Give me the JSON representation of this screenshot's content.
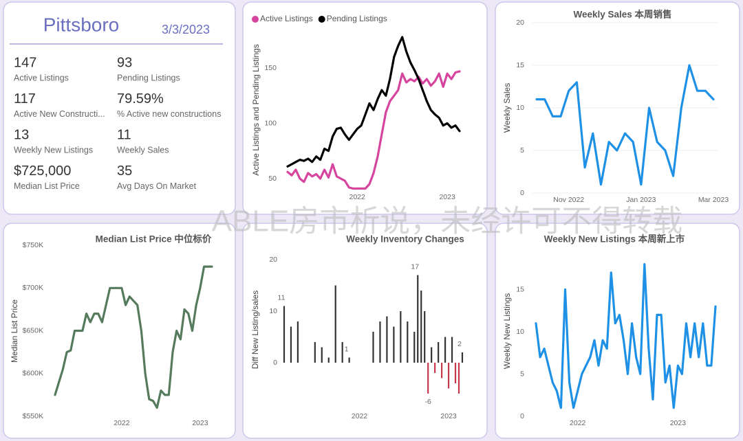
{
  "kpi": {
    "title": "Pittsboro",
    "date": "3/3/2023",
    "metrics": [
      {
        "value": "147",
        "label": "Active Listings"
      },
      {
        "value": "93",
        "label": "Pending Listings"
      },
      {
        "value": "117",
        "label": "Active New Constructi..."
      },
      {
        "value": "79.59%",
        "label": "% Active new constructions"
      },
      {
        "value": "13",
        "label": "Weekly New Listings"
      },
      {
        "value": "11",
        "label": "Weekly Sales"
      },
      {
        "value": "$725,000",
        "label": "Median List Price"
      },
      {
        "value": "35",
        "label": "Avg Days On Market"
      }
    ]
  },
  "watermark": "ABLE房市析说，未经许可不得转载",
  "chart_data": [
    {
      "type": "line",
      "y_label": "Active Listings and Pending Listings",
      "legend": "top-left",
      "grid": false,
      "categories": [
        null,
        null,
        null,
        null,
        null,
        null,
        null,
        null,
        null,
        null,
        null,
        null,
        null,
        null,
        null,
        null,
        null,
        "2022",
        null,
        null,
        null,
        null,
        null,
        null,
        null,
        null,
        null,
        null,
        null,
        null,
        null,
        null,
        null,
        null,
        null,
        null,
        null,
        null,
        null,
        "2023",
        null,
        null,
        null
      ],
      "series": [
        {
          "name": "Active Listings",
          "color": "#d6449e",
          "values": [
            56,
            53,
            58,
            50,
            47,
            55,
            52,
            54,
            50,
            58,
            51,
            63,
            52,
            50,
            48,
            42,
            41,
            41,
            41,
            41,
            45,
            55,
            70,
            90,
            110,
            120,
            125,
            130,
            145,
            137,
            140,
            138,
            142,
            136,
            140,
            134,
            138,
            145,
            133,
            145,
            140,
            146,
            147
          ]
        },
        {
          "name": "Pending Listings",
          "color": "#000000",
          "values": [
            61,
            63,
            65,
            67,
            66,
            68,
            65,
            70,
            67,
            77,
            75,
            88,
            95,
            96,
            90,
            85,
            90,
            95,
            98,
            108,
            118,
            112,
            122,
            130,
            125,
            140,
            160,
            170,
            178,
            165,
            155,
            148,
            140,
            130,
            120,
            112,
            108,
            105,
            98,
            100,
            96,
            98,
            93
          ]
        }
      ],
      "ylim": [
        38,
        184
      ],
      "yticks": [
        50,
        100,
        150
      ]
    },
    {
      "type": "line",
      "title": "Weekly Sales 本周销售",
      "y_label": "Weekly Sales",
      "grid": true,
      "color": "#1e90e6",
      "categories": [
        null,
        null,
        null,
        null,
        "Nov 2022",
        null,
        null,
        null,
        null,
        null,
        null,
        null,
        null,
        "Jan 2023",
        null,
        null,
        null,
        null,
        null,
        null,
        null,
        null,
        "Mar 2023"
      ],
      "values": [
        11,
        11,
        9,
        9,
        12,
        13,
        3,
        7,
        1,
        6,
        5,
        7,
        6,
        1,
        10,
        6,
        5,
        2,
        10,
        15,
        12,
        12,
        11
      ],
      "ylim": [
        0,
        20
      ],
      "yticks": [
        0,
        5,
        10,
        15,
        20
      ]
    },
    {
      "type": "line",
      "title": "Median List Price  中位标价",
      "y_label": "Median List Price",
      "grid": false,
      "color": "#557a5c",
      "categories": [
        null,
        null,
        null,
        null,
        null,
        null,
        null,
        null,
        null,
        null,
        null,
        null,
        null,
        null,
        null,
        null,
        null,
        "2022",
        null,
        null,
        null,
        null,
        null,
        null,
        null,
        null,
        null,
        null,
        null,
        null,
        null,
        null,
        null,
        null,
        null,
        null,
        null,
        "2023",
        null,
        null,
        null
      ],
      "values": [
        575000,
        590000,
        605000,
        625000,
        627000,
        650000,
        650000,
        650000,
        670000,
        660000,
        670000,
        670000,
        660000,
        680000,
        700000,
        700000,
        700000,
        700000,
        680000,
        690000,
        685000,
        680000,
        650000,
        600000,
        570000,
        568000,
        560000,
        580000,
        575000,
        575000,
        625000,
        650000,
        640000,
        675000,
        670000,
        650000,
        680000,
        700000,
        725000,
        725000,
        725000
      ],
      "ylim": [
        550000,
        750000
      ],
      "yticks": [
        {
          "value": 550000,
          "label": "$550K"
        },
        {
          "value": 600000,
          "label": "$600K"
        },
        {
          "value": 650000,
          "label": "$650K"
        },
        {
          "value": 700000,
          "label": "$700K"
        },
        {
          "value": 750000,
          "label": "$750K"
        }
      ]
    },
    {
      "type": "bar",
      "title": "Weekly Inventory Changes",
      "y_label": "Diff New Listing/sales",
      "grid": false,
      "color": "#333333",
      "negative_color": "#c8374c",
      "categories": [
        null,
        null,
        null,
        null,
        null,
        null,
        null,
        null,
        null,
        null,
        null,
        null,
        null,
        null,
        null,
        null,
        null,
        null,
        null,
        null,
        null,
        null,
        "2022",
        null,
        null,
        null,
        null,
        null,
        null,
        null,
        null,
        null,
        null,
        null,
        null,
        null,
        null,
        null,
        null,
        null,
        null,
        null,
        null,
        null,
        null,
        null,
        null,
        null,
        "2023",
        null,
        null,
        null,
        null
      ],
      "values": [
        11,
        0,
        7,
        0,
        8,
        0,
        0,
        0,
        0,
        4,
        0,
        3,
        0,
        1,
        0,
        15,
        0,
        4,
        0,
        1,
        0,
        0,
        0,
        0,
        0,
        0,
        6,
        0,
        8,
        0,
        9,
        0,
        7,
        0,
        10,
        0,
        8,
        0,
        6,
        17,
        14,
        10,
        -6,
        3,
        -2,
        4,
        -3,
        5,
        -5,
        5,
        -4,
        -6,
        2
      ],
      "value_labels": [
        "11",
        null,
        null,
        null,
        null,
        null,
        null,
        null,
        null,
        null,
        null,
        null,
        null,
        null,
        null,
        null,
        null,
        null,
        null,
        "1",
        null,
        null,
        null,
        null,
        null,
        null,
        null,
        null,
        null,
        null,
        null,
        null,
        null,
        null,
        null,
        null,
        null,
        null,
        null,
        "17",
        null,
        null,
        "-6",
        null,
        null,
        null,
        null,
        null,
        null,
        null,
        null,
        null,
        "2"
      ],
      "ylim": [
        -8,
        21
      ],
      "yticks": [
        0,
        10,
        20
      ]
    },
    {
      "type": "line",
      "title": "Weekly New Listings  本周新上市",
      "y_label": "Weekly New Listings",
      "grid": false,
      "color": "#1e90e6",
      "categories": [
        null,
        null,
        null,
        null,
        null,
        null,
        null,
        null,
        null,
        null,
        "2022",
        null,
        null,
        null,
        null,
        null,
        null,
        null,
        null,
        null,
        null,
        null,
        null,
        null,
        null,
        null,
        null,
        null,
        null,
        null,
        null,
        null,
        null,
        null,
        "2023",
        null,
        null,
        null,
        null,
        null,
        null,
        null,
        null,
        null
      ],
      "values": [
        11,
        7,
        8,
        6,
        4,
        3,
        1,
        15,
        4,
        1,
        3,
        5,
        6,
        7,
        9,
        6,
        9,
        8,
        17,
        11,
        12,
        9,
        5,
        11,
        7,
        5,
        18,
        8,
        2,
        12,
        12,
        4,
        6,
        1,
        6,
        5,
        11,
        7,
        11,
        7,
        11,
        6,
        6,
        13
      ],
      "ylim": [
        0,
        19
      ],
      "yticks": [
        0,
        5,
        10,
        15
      ]
    }
  ]
}
